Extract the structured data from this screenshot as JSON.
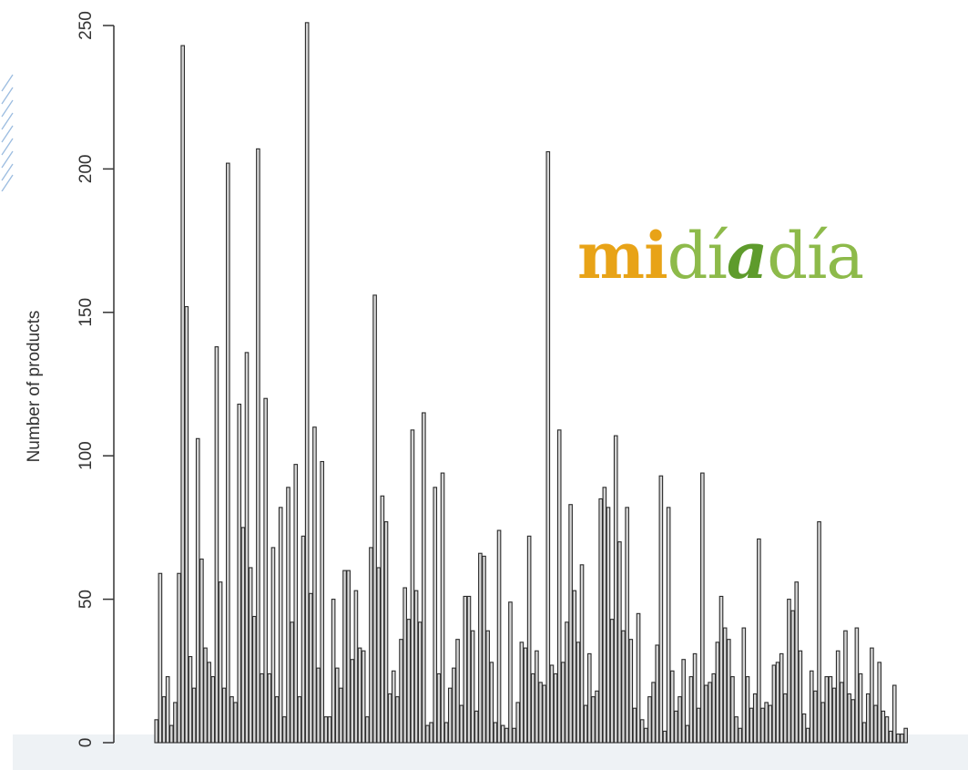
{
  "chart_data": {
    "type": "bar",
    "title": "",
    "xlabel": "",
    "ylabel": "Number of products",
    "ylim": [
      0,
      250
    ],
    "y_ticks": [
      "0",
      "50",
      "100",
      "150",
      "200",
      "250"
    ],
    "grid": false,
    "values": [
      8,
      59,
      16,
      23,
      6,
      14,
      59,
      243,
      152,
      30,
      19,
      106,
      64,
      33,
      28,
      23,
      138,
      56,
      19,
      202,
      16,
      14,
      118,
      75,
      136,
      61,
      44,
      207,
      24,
      120,
      24,
      68,
      16,
      82,
      9,
      89,
      42,
      97,
      16,
      72,
      251,
      52,
      110,
      26,
      98,
      9,
      9,
      50,
      26,
      19,
      60,
      60,
      29,
      53,
      33,
      32,
      9,
      68,
      156,
      61,
      86,
      77,
      17,
      25,
      16,
      36,
      54,
      43,
      109,
      53,
      42,
      115,
      6,
      7,
      89,
      24,
      94,
      7,
      19,
      26,
      36,
      13,
      51,
      51,
      39,
      11,
      66,
      65,
      39,
      28,
      7,
      74,
      6,
      5,
      49,
      5,
      14,
      35,
      33,
      72,
      24,
      32,
      21,
      20,
      206,
      27,
      24,
      109,
      28,
      42,
      83,
      53,
      35,
      62,
      13,
      31,
      16,
      18,
      85,
      89,
      82,
      43,
      107,
      70,
      39,
      82,
      36,
      12,
      45,
      8,
      5,
      16,
      21,
      34,
      93,
      4,
      82,
      25,
      11,
      16,
      29,
      6,
      23,
      31,
      12,
      94,
      20,
      21,
      24,
      35,
      51,
      40,
      36,
      23,
      9,
      5,
      40,
      23,
      12,
      17,
      71,
      12,
      14,
      13,
      27,
      28,
      31,
      17,
      50,
      46,
      56,
      32,
      10,
      5,
      25,
      18,
      77,
      14,
      23,
      23,
      19,
      32,
      21,
      39,
      17,
      15,
      40,
      24,
      7,
      17,
      33,
      13,
      28,
      11,
      9,
      4,
      20,
      3,
      3,
      5
    ],
    "series_color": "#2b2b2b"
  },
  "logo": {
    "part1": "mi",
    "part2": "dí",
    "part3": "a",
    "part4": "día",
    "color_mi": "#e8a317",
    "color_dia": "#8dba4a",
    "color_a": "#5e9b2c"
  }
}
